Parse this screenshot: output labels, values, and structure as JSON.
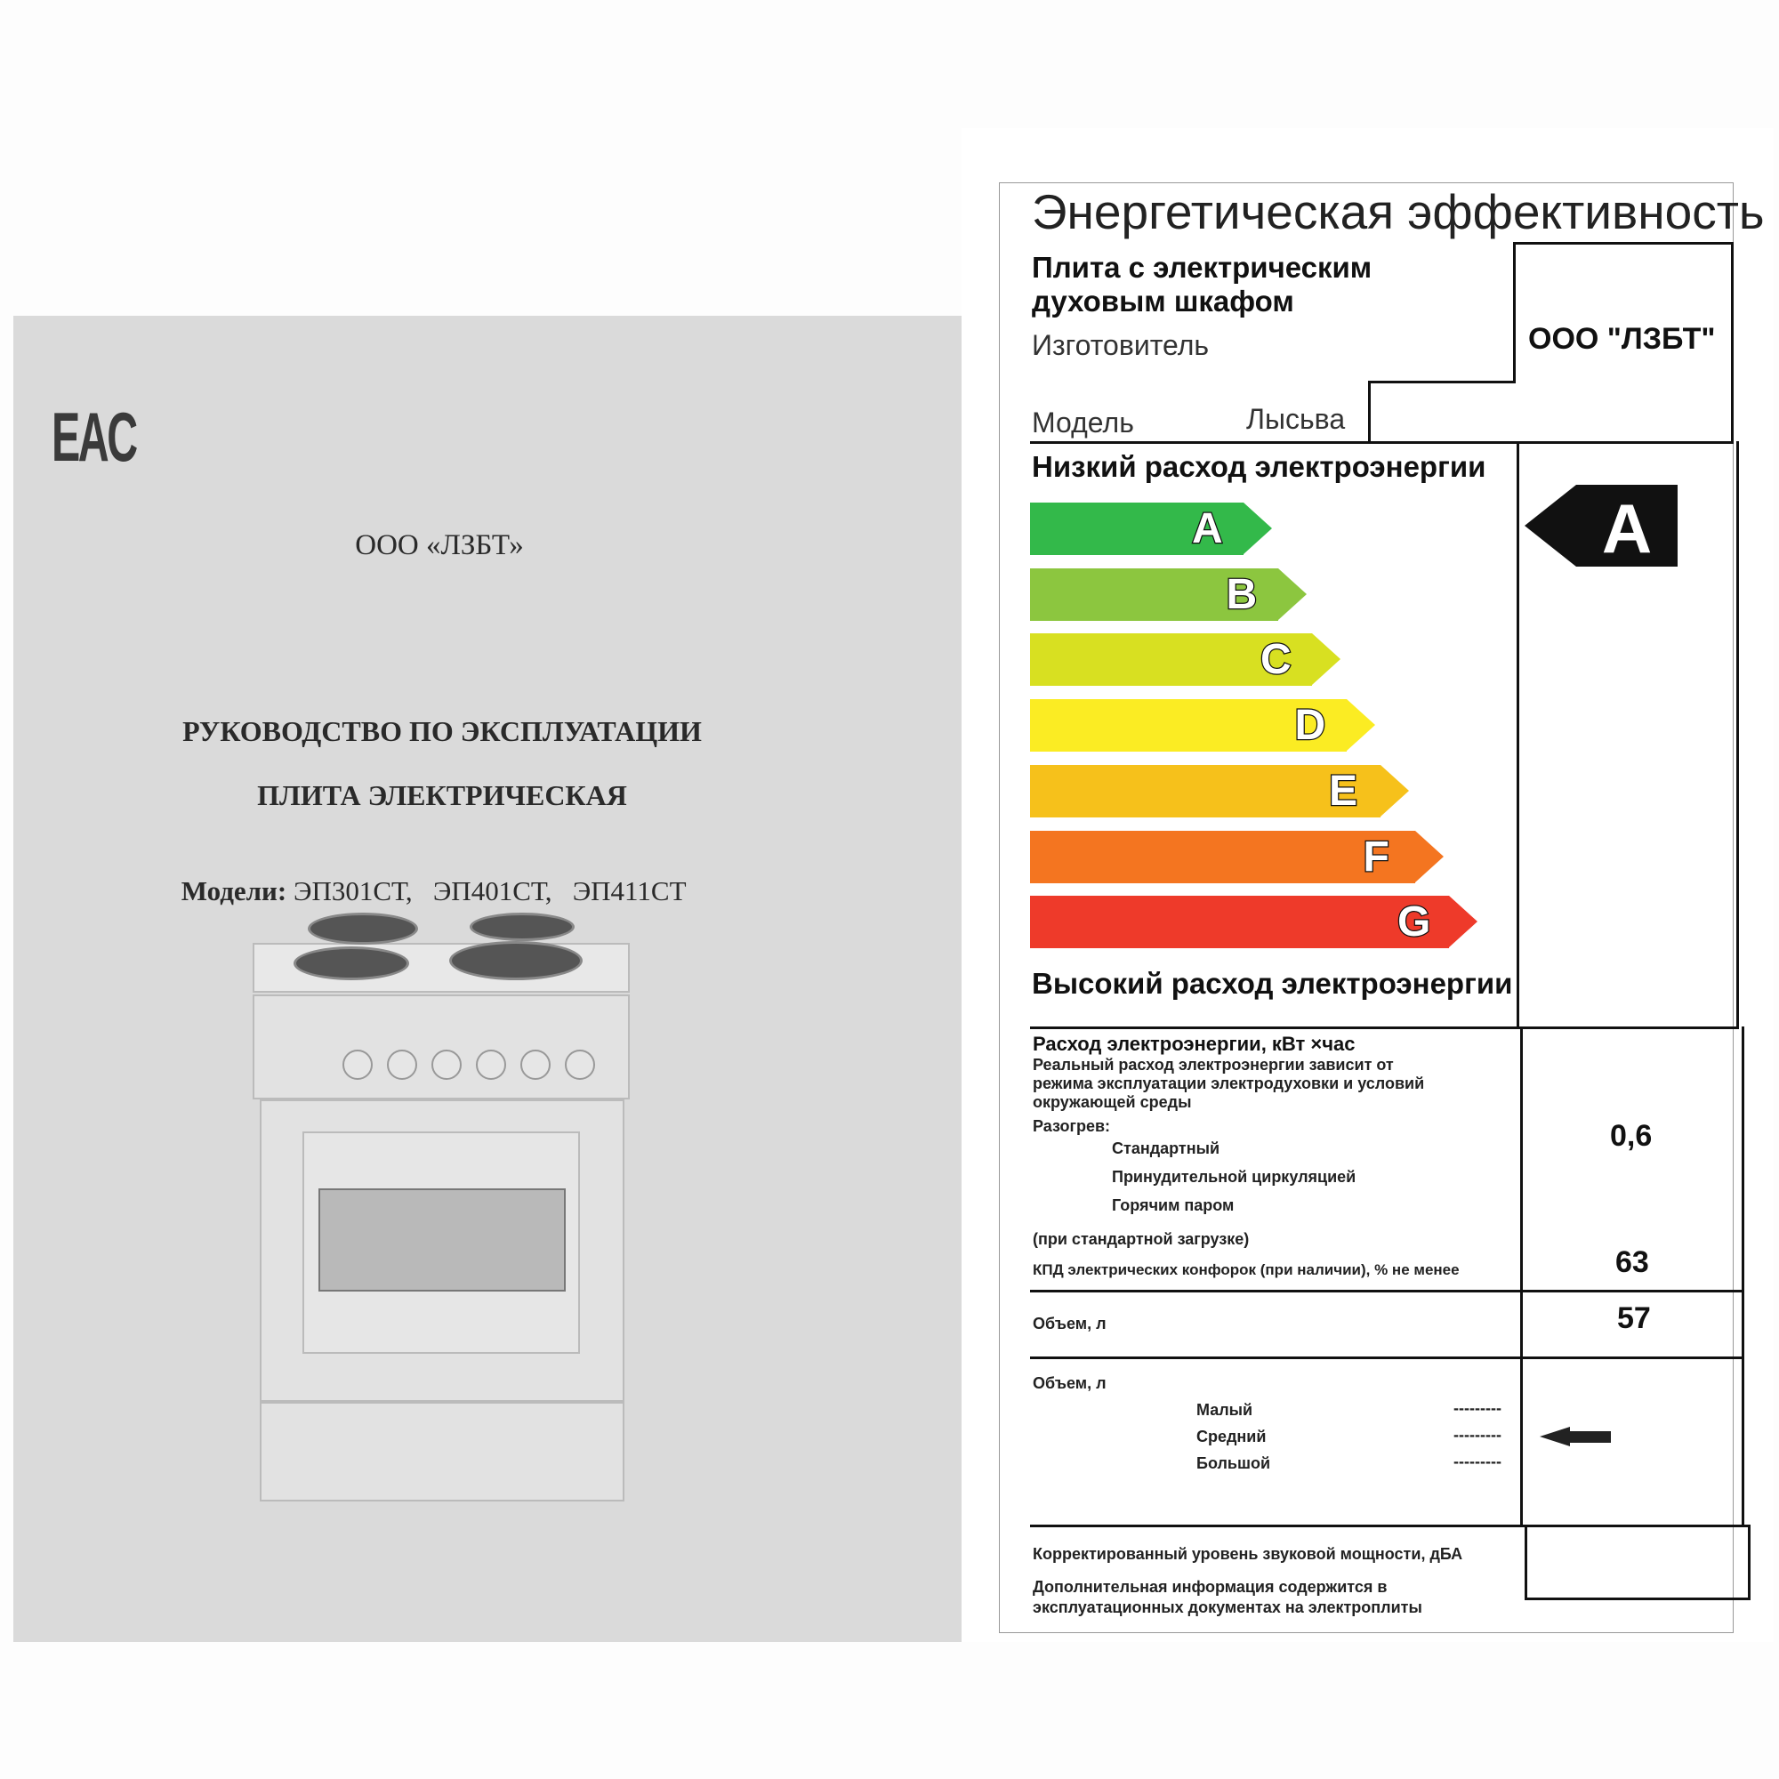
{
  "booklet": {
    "logo": "EAC",
    "company": "ООО «ЛЗБТ»",
    "title": "РУКОВОДСТВО ПО ЭКСПЛУАТАЦИИ",
    "subtitle": "ПЛИТА ЭЛЕКТРИЧЕСКАЯ",
    "models_label": "Модели:",
    "models": "ЭП301СТ,   ЭП401СТ,   ЭП411СТ",
    "illustration": "electric-stove-image"
  },
  "label": {
    "title": "Энергетическая эффективность",
    "product_line1": "Плита с электрическим",
    "product_line2": "духовым шкафом",
    "manufacturer_label": "Изготовитель",
    "manufacturer_value": "ООО \"ЛЗБТ\"",
    "model_label": "Модель",
    "model_value": "Лысьва",
    "low_label": "Низкий расход электроэнергии",
    "high_label": "Высокий расход электроэнергии",
    "classes": [
      {
        "letter": "A",
        "color": "#33b94a"
      },
      {
        "letter": "B",
        "color": "#8cc63f"
      },
      {
        "letter": "C",
        "color": "#d8e021"
      },
      {
        "letter": "D",
        "color": "#fbec23"
      },
      {
        "letter": "E",
        "color": "#f6c11b"
      },
      {
        "letter": "F",
        "color": "#f47520"
      },
      {
        "letter": "G",
        "color": "#ee3a2a"
      }
    ],
    "rating": "A",
    "consumption_title": "Расход электроэнергии, кВт ×час",
    "consumption_note1": "Реальный расход электроэнергии зависит от",
    "consumption_note2": "режима эксплуатации электродуховки и условий",
    "consumption_note3": "окружающей среды",
    "heating_label": "Разогрев:",
    "heating_modes": [
      "Стандартный",
      "Принудительной циркуляцией",
      "Горячим паром"
    ],
    "load_note": "(при стандартной загрузке)",
    "consumption_value": "0,6",
    "efficiency_label": "КПД электрических конфорок (при наличии), % не менее",
    "efficiency_value": "63",
    "volume_label": "Объем, л",
    "volume_value": "57",
    "size_label": "Объем, л",
    "sizes": [
      {
        "name": "Малый",
        "dash": "---------"
      },
      {
        "name": "Средний",
        "dash": "---------"
      },
      {
        "name": "Большой",
        "dash": "---------"
      }
    ],
    "selected_size": "Средний",
    "noise_label": "Корректированный уровень звуковой мощности, дБА",
    "info_line1": "Дополнительная информация содержится в",
    "info_line2": "эксплуатационных документах на электроплиты"
  }
}
